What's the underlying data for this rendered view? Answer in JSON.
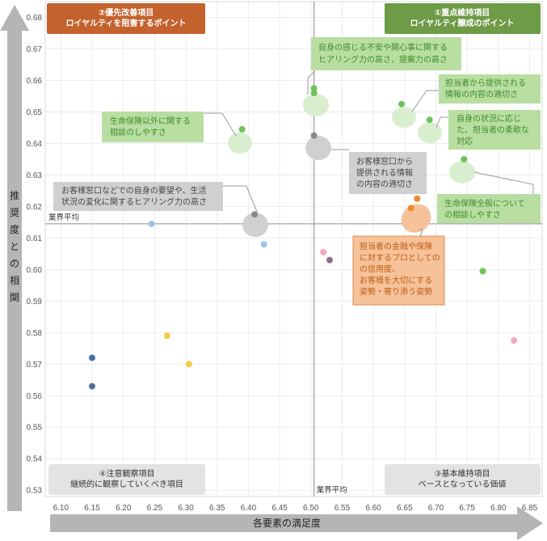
{
  "chart_data": {
    "type": "scatter",
    "xlabel": "各要素の満足度",
    "ylabel": "推奨度との相関",
    "xlim": [
      6.075,
      6.87
    ],
    "ylim": [
      0.528,
      0.685
    ],
    "xticks": [
      "6.10",
      "6.15",
      "6.20",
      "6.25",
      "6.30",
      "6.35",
      "6.40",
      "6.45",
      "6.50",
      "6.55",
      "6.60",
      "6.65",
      "6.70",
      "6.75",
      "6.80",
      "6.85"
    ],
    "yticks": [
      "0.68",
      "0.67",
      "0.66",
      "0.65",
      "0.64",
      "0.63",
      "0.62",
      "0.61",
      "0.60",
      "0.59",
      "0.58",
      "0.57",
      "0.56",
      "0.55",
      "0.54",
      "0.53"
    ],
    "average": {
      "x": 6.505,
      "y": 0.6145,
      "label_x": "業界平均",
      "label_y": "業界平均"
    },
    "grid": true,
    "points": [
      {
        "x": 6.505,
        "y": 0.6575,
        "color": "#6cc35a"
      },
      {
        "x": 6.505,
        "y": 0.656,
        "color": "#6cc35a"
      },
      {
        "x": 6.645,
        "y": 0.6525,
        "color": "#6cc35a"
      },
      {
        "x": 6.69,
        "y": 0.6475,
        "color": "#6cc35a"
      },
      {
        "x": 6.39,
        "y": 0.6445,
        "color": "#6cc35a"
      },
      {
        "x": 6.505,
        "y": 0.6425,
        "color": "#888888"
      },
      {
        "x": 6.745,
        "y": 0.635,
        "color": "#6cc35a"
      },
      {
        "x": 6.67,
        "y": 0.6225,
        "color": "#f0892c"
      },
      {
        "x": 6.66,
        "y": 0.6195,
        "color": "#f0892c"
      },
      {
        "x": 6.41,
        "y": 0.6175,
        "color": "#888888"
      },
      {
        "x": 6.245,
        "y": 0.6145,
        "color": "#9ec4e8"
      },
      {
        "x": 6.425,
        "y": 0.608,
        "color": "#9ec4e8"
      },
      {
        "x": 6.52,
        "y": 0.6055,
        "color": "#f4a7bd"
      },
      {
        "x": 6.53,
        "y": 0.603,
        "color": "#8e6d8c"
      },
      {
        "x": 6.775,
        "y": 0.5995,
        "color": "#6cc35a"
      },
      {
        "x": 6.27,
        "y": 0.579,
        "color": "#f2cc4c"
      },
      {
        "x": 6.825,
        "y": 0.5775,
        "color": "#f4a7bd"
      },
      {
        "x": 6.15,
        "y": 0.572,
        "color": "#4a6f9c"
      },
      {
        "x": 6.305,
        "y": 0.57,
        "color": "#f2cc4c"
      },
      {
        "x": 6.15,
        "y": 0.563,
        "color": "#4a6f9c"
      }
    ]
  },
  "quadrants": {
    "q1": {
      "line1": "①重点維持項目",
      "line2": "ロイヤルティ醸成のポイント"
    },
    "q2": {
      "line1": "②優先改善項目",
      "line2": "ロイヤルティを阻害するポイント"
    },
    "q3": {
      "line1": "③基本維持項目",
      "line2": "ベースとなっている価値"
    },
    "q4": {
      "line1": "④注意観察項目",
      "line2": "継続的に観察していくべき項目"
    }
  },
  "callouts": {
    "c1": [
      "自身の感じる不安や関心事に関する",
      "ヒアリング力の高さ、提案力の高さ"
    ],
    "c2": [
      "担当者から提供される",
      "情報の内容の適切さ"
    ],
    "c3": [
      "自身の状況に応じ",
      "た、担当者の柔軟な",
      "対応"
    ],
    "c4": [
      "生命保険以外に関する",
      "相談のしやすさ"
    ],
    "c5": [
      "お客様窓口から",
      "提供される情報",
      "の内容の適切さ"
    ],
    "c6": [
      "お客様窓口などでの自身の要望や、生活",
      "状況の変化に関するヒアリング力の高さ"
    ],
    "c7": [
      "生命保険全般について",
      "の相談しやすさ"
    ],
    "c8": [
      "担当者の金融や保険",
      "に対するプロとしての",
      "の信用度、",
      "お客様を大切にする",
      "姿勢・寄り添う姿勢"
    ]
  },
  "colors": {
    "green_box": "#b8dea1",
    "green_text": "#3f8a2c",
    "gray_box": "#d0d0d0",
    "gray_text": "#444444",
    "orange_box": "#f5c29a",
    "orange_text": "#c05a10",
    "q1_fill": "#6e9b46",
    "q2_fill": "#c4622d",
    "q3q4_fill": "#e3e3e3"
  }
}
